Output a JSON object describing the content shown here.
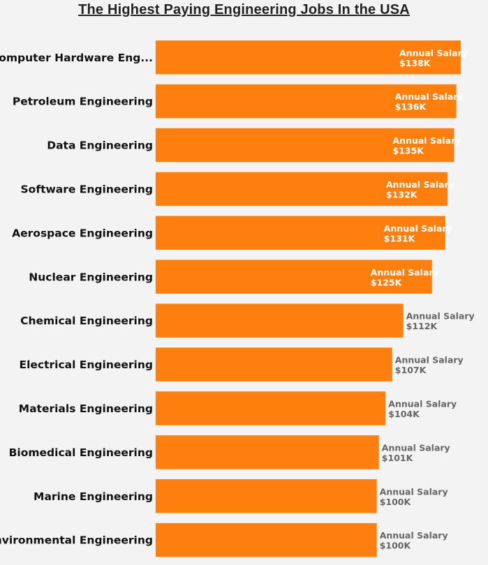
{
  "chart_data": {
    "type": "bar",
    "orientation": "horizontal",
    "title": "The Highest Paying Engineering Jobs In the USA",
    "categories": [
      "Computer Hardware Eng...",
      "Petroleum Engineering",
      "Data Engineering",
      "Software Engineering",
      "Aerospace Engineering",
      "Nuclear Engineering",
      "Chemical Engineering",
      "Electrical Engineering",
      "Materials Engineering",
      "Biomedical Engineering",
      "Marine Engineering",
      "Environmental Engineering"
    ],
    "series": [
      {
        "name": "Annual Salary",
        "values": [
          138,
          136,
          135,
          132,
          131,
          125,
          112,
          107,
          104,
          101,
          100,
          100
        ]
      }
    ],
    "data_labels": [
      "$138K",
      "$136K",
      "$135K",
      "$132K",
      "$131K",
      "$125K",
      "$112K",
      "$107K",
      "$104K",
      "$101K",
      "$100K",
      "$100K"
    ],
    "xlim": [
      0,
      138
    ],
    "grid": false,
    "legend": "none",
    "bar_color": "#ff7f0e",
    "label_color_inside": "#ffffff",
    "label_color_outside": "#666666"
  }
}
